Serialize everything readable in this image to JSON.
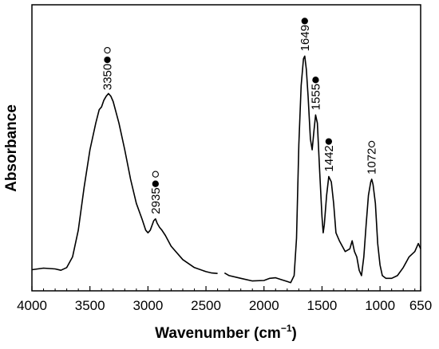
{
  "chart_data": {
    "type": "line",
    "title": "",
    "xlabel_main": "Wavenumber (cm",
    "xlabel_sup": "−1",
    "xlabel_close": ")",
    "ylabel": "Absorbance",
    "xlim": [
      4000,
      650
    ],
    "x_reversed": true,
    "ylim": [
      0,
      1
    ],
    "y_ticks_labeled": false,
    "grid": false,
    "legend": "none",
    "x_ticks": [
      {
        "value": 4000,
        "label": "4000"
      },
      {
        "value": 3500,
        "label": "3500"
      },
      {
        "value": 3000,
        "label": "3000"
      },
      {
        "value": 2500,
        "label": "2500"
      },
      {
        "value": 2000,
        "label": "2000"
      },
      {
        "value": 1500,
        "label": "1500"
      },
      {
        "value": 1000,
        "label": "1000"
      },
      {
        "value": 650,
        "label": "650"
      }
    ],
    "line_color": "#000000",
    "series": [
      {
        "segments": [
          [
            [
              4000,
              0.052
            ],
            [
              3900,
              0.058
            ],
            [
              3800,
              0.055
            ],
            [
              3750,
              0.05
            ],
            [
              3700,
              0.06
            ],
            [
              3650,
              0.1
            ],
            [
              3600,
              0.2
            ],
            [
              3550,
              0.36
            ],
            [
              3500,
              0.5
            ],
            [
              3450,
              0.6
            ],
            [
              3420,
              0.65
            ],
            [
              3400,
              0.66
            ],
            [
              3380,
              0.685
            ],
            [
              3360,
              0.7
            ],
            [
              3340,
              0.71
            ],
            [
              3320,
              0.7
            ],
            [
              3300,
              0.68
            ],
            [
              3250,
              0.6
            ],
            [
              3200,
              0.5
            ],
            [
              3150,
              0.39
            ],
            [
              3100,
              0.3
            ],
            [
              3050,
              0.24
            ],
            [
              3020,
              0.2
            ],
            [
              3000,
              0.19
            ],
            [
              2980,
              0.2
            ],
            [
              2950,
              0.235
            ],
            [
              2935,
              0.242
            ],
            [
              2920,
              0.225
            ],
            [
              2900,
              0.21
            ],
            [
              2880,
              0.2
            ],
            [
              2850,
              0.18
            ],
            [
              2800,
              0.14
            ],
            [
              2700,
              0.09
            ],
            [
              2600,
              0.06
            ],
            [
              2500,
              0.045
            ],
            [
              2450,
              0.04
            ],
            [
              2400,
              0.038
            ]
          ],
          [
            [
              2340,
              0.04
            ],
            [
              2300,
              0.03
            ],
            [
              2200,
              0.02
            ],
            [
              2100,
              0.01
            ],
            [
              2000,
              0.012
            ],
            [
              1950,
              0.02
            ],
            [
              1900,
              0.022
            ],
            [
              1850,
              0.015
            ],
            [
              1800,
              0.008
            ],
            [
              1770,
              0.004
            ],
            [
              1740,
              0.03
            ],
            [
              1720,
              0.17
            ],
            [
              1700,
              0.52
            ],
            [
              1680,
              0.74
            ],
            [
              1660,
              0.84
            ],
            [
              1649,
              0.85
            ],
            [
              1635,
              0.8
            ],
            [
              1620,
              0.7
            ],
            [
              1600,
              0.54
            ],
            [
              1585,
              0.5
            ],
            [
              1570,
              0.57
            ],
            [
              1555,
              0.63
            ],
            [
              1540,
              0.6
            ],
            [
              1520,
              0.42
            ],
            [
              1500,
              0.25
            ],
            [
              1490,
              0.19
            ],
            [
              1480,
              0.22
            ],
            [
              1460,
              0.33
            ],
            [
              1442,
              0.4
            ],
            [
              1420,
              0.38
            ],
            [
              1400,
              0.3
            ],
            [
              1380,
              0.19
            ],
            [
              1350,
              0.16
            ],
            [
              1300,
              0.12
            ],
            [
              1260,
              0.13
            ],
            [
              1240,
              0.16
            ],
            [
              1220,
              0.12
            ],
            [
              1200,
              0.1
            ],
            [
              1180,
              0.05
            ],
            [
              1160,
              0.03
            ],
            [
              1140,
              0.1
            ],
            [
              1120,
              0.22
            ],
            [
              1100,
              0.33
            ],
            [
              1080,
              0.38
            ],
            [
              1072,
              0.39
            ],
            [
              1060,
              0.37
            ],
            [
              1040,
              0.3
            ],
            [
              1020,
              0.15
            ],
            [
              1000,
              0.07
            ],
            [
              980,
              0.03
            ],
            [
              950,
              0.02
            ],
            [
              900,
              0.02
            ],
            [
              850,
              0.03
            ],
            [
              800,
              0.06
            ],
            [
              750,
              0.1
            ],
            [
              700,
              0.12
            ],
            [
              670,
              0.15
            ],
            [
              650,
              0.13
            ]
          ]
        ]
      }
    ],
    "peaks": [
      {
        "x": 3350,
        "label": "3350",
        "markers": [
          "filled",
          "open"
        ]
      },
      {
        "x": 2935,
        "label": "2935",
        "markers": [
          "filled",
          "open"
        ]
      },
      {
        "x": 1649,
        "label": "1649",
        "markers": [
          "filled"
        ]
      },
      {
        "x": 1555,
        "label": "1555",
        "markers": [
          "filled"
        ]
      },
      {
        "x": 1442,
        "label": "1442",
        "markers": [
          "filled"
        ]
      },
      {
        "x": 1072,
        "label": "1072",
        "markers": [
          "open"
        ]
      }
    ]
  }
}
